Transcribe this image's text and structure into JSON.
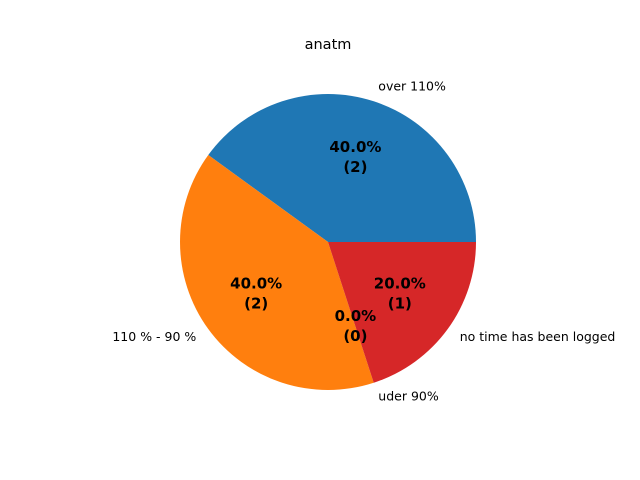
{
  "chart_data": {
    "type": "pie",
    "title": "anatm",
    "slices": [
      {
        "label": "over 110%",
        "value": 2,
        "pct": "40.0%",
        "count": "(2)",
        "color": "#1f77b4"
      },
      {
        "label": "110 % - 90 %",
        "value": 2,
        "pct": "40.0%",
        "count": "(2)",
        "color": "#ff7f0e"
      },
      {
        "label": "uder 90%",
        "value": 0,
        "pct": "0.0%",
        "count": "(0)",
        "color": "#2ca02c"
      },
      {
        "label": "no time has been logged",
        "value": 1,
        "pct": "20.0%",
        "count": "(1)",
        "color": "#d62728"
      }
    ],
    "start_angle_deg": 0,
    "direction": "counterclockwise",
    "legend": "none"
  }
}
